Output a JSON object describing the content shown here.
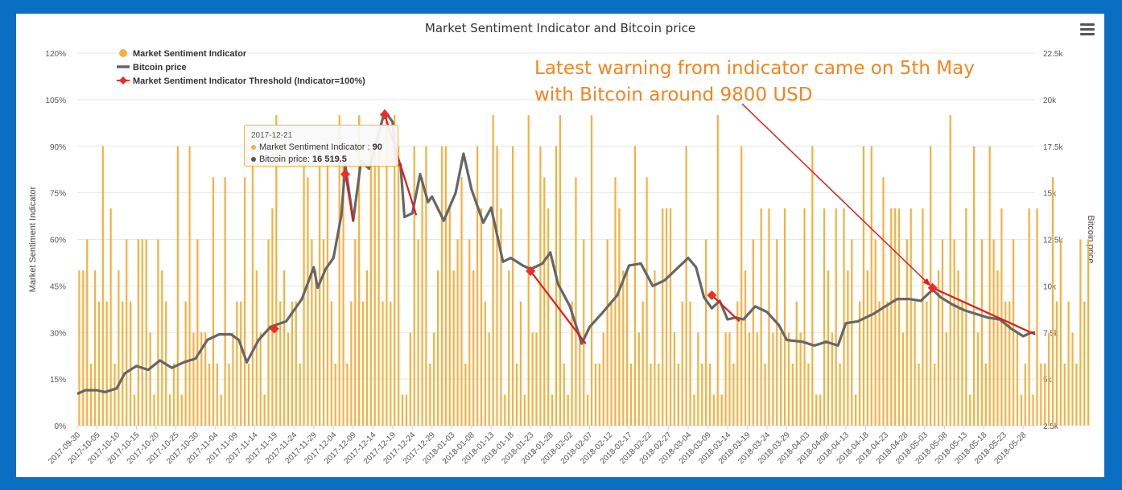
{
  "page": {
    "annotation_line1": "Latest warning from indicator came on 5th May",
    "annotation_line2": "with Bitcoin around 9800 USD",
    "tooltip": {
      "date": "2017-12-21",
      "indicator_label": "Market Sentiment Indicator :",
      "indicator_value": "90",
      "price_label": "Bitcoin price:",
      "price_value": "16 519.5"
    },
    "colors": {
      "background": "#0a6fc2",
      "bars": "#f5b041",
      "price": "#666666",
      "threshold": "#ef2b2b",
      "arrows": "#dd1c1c",
      "annotation": "#f7831c"
    },
    "icons": [
      "menu-icon"
    ]
  },
  "chart_data": {
    "type": "bar",
    "title": "Market Sentiment Indicator and Bitcoin price",
    "ylabel_left": "Market Sentiment Indicator",
    "ylabel_right": "Bitcoin price",
    "ylim_left": [
      0,
      120
    ],
    "ylim_right": [
      2500,
      22500
    ],
    "yticks_left": [
      "0%",
      "15%",
      "30%",
      "45%",
      "60%",
      "75%",
      "90%",
      "105%",
      "120%"
    ],
    "yticks_right": [
      "2.5k",
      "5k",
      "7.5k",
      "10k",
      "12.5k",
      "15k",
      "17.5k",
      "20k",
      "22.5k"
    ],
    "x_tick_labels": [
      "2017-09-30",
      "2017-10-05",
      "2017-10-10",
      "2017-10-15",
      "2017-10-20",
      "2017-10-25",
      "2017-10-30",
      "2017-11-04",
      "2017-11-09",
      "2017-11-14",
      "2017-11-19",
      "2017-11-24",
      "2017-11-29",
      "2017-12-04",
      "2017-12-09",
      "2017-12-14",
      "2017-12-19",
      "2017-12-24",
      "2017-12-29",
      "2018-01-03",
      "2018-01-08",
      "2018-01-13",
      "2018-01-18",
      "2018-01-23",
      "2018-01-28",
      "2018-02-02",
      "2018-02-07",
      "2018-02-12",
      "2018-02-17",
      "2018-02-22",
      "2018-02-27",
      "2018-03-04",
      "2018-03-09",
      "2018-03-14",
      "2018-03-19",
      "2018-03-24",
      "2018-03-29",
      "2018-04-03",
      "2018-04-08",
      "2018-04-13",
      "2018-04-18",
      "2018-04-23",
      "2018-04-28",
      "2018-05-03",
      "2018-05-08",
      "2018-05-13",
      "2018-05-18",
      "2018-05-23",
      "2018-05-28"
    ],
    "legend": [
      "Market Sentiment Indicator",
      "Bitcoin price",
      "Market Sentiment Indicator Threshold (Indicator=100%)"
    ],
    "legend_position": "top-left",
    "grid": true,
    "series": [
      {
        "name": "Market Sentiment Indicator",
        "type": "bar",
        "values": [
          50,
          50,
          60,
          20,
          50,
          40,
          90,
          40,
          70,
          20,
          50,
          40,
          60,
          40,
          10,
          60,
          60,
          60,
          30,
          10,
          60,
          50,
          40,
          10,
          20,
          90,
          10,
          40,
          90,
          30,
          60,
          30,
          30,
          20,
          80,
          20,
          10,
          80,
          20,
          30,
          40,
          40,
          80,
          20,
          90,
          50,
          30,
          10,
          60,
          70,
          100,
          40,
          50,
          30,
          40,
          40,
          20,
          90,
          80,
          60,
          50,
          90,
          60,
          90,
          40,
          20,
          100,
          90,
          20,
          40,
          60,
          100,
          40,
          50,
          90,
          90,
          90,
          40,
          100,
          40,
          100,
          90,
          10,
          10,
          30,
          90,
          60,
          80,
          90,
          20,
          30,
          50,
          90,
          90,
          70,
          50,
          60,
          80,
          20,
          60,
          50,
          90,
          70,
          40,
          30,
          100,
          90,
          70,
          10,
          50,
          90,
          20,
          40,
          10,
          100,
          30,
          30,
          90,
          80,
          70,
          10,
          90,
          100,
          20,
          10,
          40,
          80,
          30,
          60,
          10,
          100,
          20,
          20,
          30,
          60,
          40,
          80,
          70,
          50,
          50,
          20,
          90,
          30,
          40,
          80,
          20,
          50,
          20,
          70,
          70,
          70,
          30,
          20,
          40,
          90,
          40,
          10,
          30,
          20,
          60,
          20,
          10,
          100,
          10,
          30,
          30,
          20,
          40,
          90,
          50,
          30,
          60,
          30,
          70,
          20,
          70,
          30,
          60,
          30,
          70,
          30,
          20,
          40,
          30,
          70,
          20,
          90,
          10,
          10,
          70,
          50,
          30,
          70,
          20,
          70,
          50,
          60,
          10,
          40,
          90,
          50,
          90,
          60,
          40,
          80,
          40,
          70,
          70,
          70,
          30,
          60,
          70,
          40,
          20,
          70,
          40,
          90,
          20,
          50,
          60,
          30,
          100,
          60,
          50,
          40,
          70,
          10,
          90,
          30,
          60,
          20,
          90,
          60,
          50,
          70,
          40,
          40,
          60,
          30,
          10,
          20,
          70,
          10,
          70,
          20,
          20,
          30,
          80,
          40,
          60,
          20,
          40,
          30,
          20,
          60,
          40,
          60
        ]
      },
      {
        "name": "Bitcoin price",
        "type": "line",
        "points": [
          [
            "2017-09-30",
            4200
          ],
          [
            "2017-10-02",
            4400
          ],
          [
            "2017-10-05",
            4400
          ],
          [
            "2017-10-07",
            4300
          ],
          [
            "2017-10-10",
            4500
          ],
          [
            "2017-10-12",
            5300
          ],
          [
            "2017-10-15",
            5700
          ],
          [
            "2017-10-18",
            5500
          ],
          [
            "2017-10-21",
            6000
          ],
          [
            "2017-10-24",
            5600
          ],
          [
            "2017-10-27",
            5900
          ],
          [
            "2017-10-30",
            6100
          ],
          [
            "2017-11-02",
            7100
          ],
          [
            "2017-11-05",
            7400
          ],
          [
            "2017-11-08",
            7400
          ],
          [
            "2017-11-10",
            7100
          ],
          [
            "2017-11-12",
            5900
          ],
          [
            "2017-11-15",
            7100
          ],
          [
            "2017-11-18",
            7800
          ],
          [
            "2017-11-22",
            8100
          ],
          [
            "2017-11-26",
            9300
          ],
          [
            "2017-11-29",
            11000
          ],
          [
            "2017-11-30",
            9900
          ],
          [
            "2017-12-02",
            10900
          ],
          [
            "2017-12-04",
            11500
          ],
          [
            "2017-12-06",
            13800
          ],
          [
            "2017-12-07",
            16500
          ],
          [
            "2017-12-09",
            13500
          ],
          [
            "2017-12-11",
            16700
          ],
          [
            "2017-12-13",
            16300
          ],
          [
            "2017-12-15",
            17800
          ],
          [
            "2017-12-17",
            19400
          ],
          [
            "2017-12-19",
            18800
          ],
          [
            "2017-12-20",
            16500
          ],
          [
            "2017-12-21",
            16519.5
          ],
          [
            "2017-12-22",
            13700
          ],
          [
            "2017-12-24",
            13900
          ],
          [
            "2017-12-26",
            16000
          ],
          [
            "2017-12-28",
            14500
          ],
          [
            "2017-12-29",
            14800
          ],
          [
            "2018-01-01",
            13500
          ],
          [
            "2018-01-04",
            15000
          ],
          [
            "2018-01-06",
            17100
          ],
          [
            "2018-01-08",
            15200
          ],
          [
            "2018-01-11",
            13400
          ],
          [
            "2018-01-13",
            14200
          ],
          [
            "2018-01-16",
            11300
          ],
          [
            "2018-01-18",
            11500
          ],
          [
            "2018-01-21",
            11100
          ],
          [
            "2018-01-23",
            10900
          ],
          [
            "2018-01-26",
            11200
          ],
          [
            "2018-01-28",
            11800
          ],
          [
            "2018-01-30",
            10100
          ],
          [
            "2018-02-02",
            8900
          ],
          [
            "2018-02-05",
            6900
          ],
          [
            "2018-02-07",
            7800
          ],
          [
            "2018-02-10",
            8500
          ],
          [
            "2018-02-14",
            9500
          ],
          [
            "2018-02-17",
            11100
          ],
          [
            "2018-02-20",
            11200
          ],
          [
            "2018-02-23",
            10000
          ],
          [
            "2018-02-26",
            10300
          ],
          [
            "2018-03-01",
            10900
          ],
          [
            "2018-03-04",
            11500
          ],
          [
            "2018-03-06",
            11000
          ],
          [
            "2018-03-08",
            9400
          ],
          [
            "2018-03-10",
            8800
          ],
          [
            "2018-03-12",
            9200
          ],
          [
            "2018-03-14",
            8200
          ],
          [
            "2018-03-16",
            8300
          ],
          [
            "2018-03-18",
            8200
          ],
          [
            "2018-03-21",
            8900
          ],
          [
            "2018-03-24",
            8600
          ],
          [
            "2018-03-27",
            7900
          ],
          [
            "2018-03-29",
            7100
          ],
          [
            "2018-04-02",
            7000
          ],
          [
            "2018-04-05",
            6800
          ],
          [
            "2018-04-08",
            7000
          ],
          [
            "2018-04-11",
            6800
          ],
          [
            "2018-04-13",
            8000
          ],
          [
            "2018-04-16",
            8100
          ],
          [
            "2018-04-20",
            8500
          ],
          [
            "2018-04-23",
            8900
          ],
          [
            "2018-04-26",
            9300
          ],
          [
            "2018-04-29",
            9300
          ],
          [
            "2018-05-02",
            9200
          ],
          [
            "2018-05-05",
            9800
          ],
          [
            "2018-05-07",
            9400
          ],
          [
            "2018-05-10",
            9000
          ],
          [
            "2018-05-13",
            8700
          ],
          [
            "2018-05-16",
            8500
          ],
          [
            "2018-05-19",
            8300
          ],
          [
            "2018-05-22",
            8200
          ],
          [
            "2018-05-25",
            7700
          ],
          [
            "2018-05-28",
            7300
          ],
          [
            "2018-05-30",
            7500
          ],
          [
            "2018-05-31",
            7500
          ]
        ]
      },
      {
        "name": "Market Sentiment Indicator Threshold (Indicator=100%)",
        "type": "marker",
        "points": [
          [
            "2017-11-19",
            7700
          ],
          [
            "2017-12-07",
            16000
          ],
          [
            "2017-12-17",
            19200
          ],
          [
            "2018-01-23",
            10800
          ],
          [
            "2018-03-10",
            9500
          ],
          [
            "2018-05-05",
            9900
          ]
        ]
      }
    ],
    "warning_arrows": [
      {
        "from": [
          "2017-12-07",
          16000
        ],
        "to": [
          "2017-12-09",
          13500
        ]
      },
      {
        "from": [
          "2017-12-17",
          19200
        ],
        "to": [
          "2017-12-25",
          13800
        ]
      },
      {
        "from": [
          "2018-01-23",
          10800
        ],
        "to": [
          "2018-02-06",
          6900
        ]
      },
      {
        "from": [
          "2018-03-10",
          9500
        ],
        "to": [
          "2018-03-17",
          8100
        ]
      },
      {
        "from": [
          "2018-05-05",
          9900
        ],
        "to": [
          "2018-05-31",
          7400
        ]
      }
    ]
  }
}
